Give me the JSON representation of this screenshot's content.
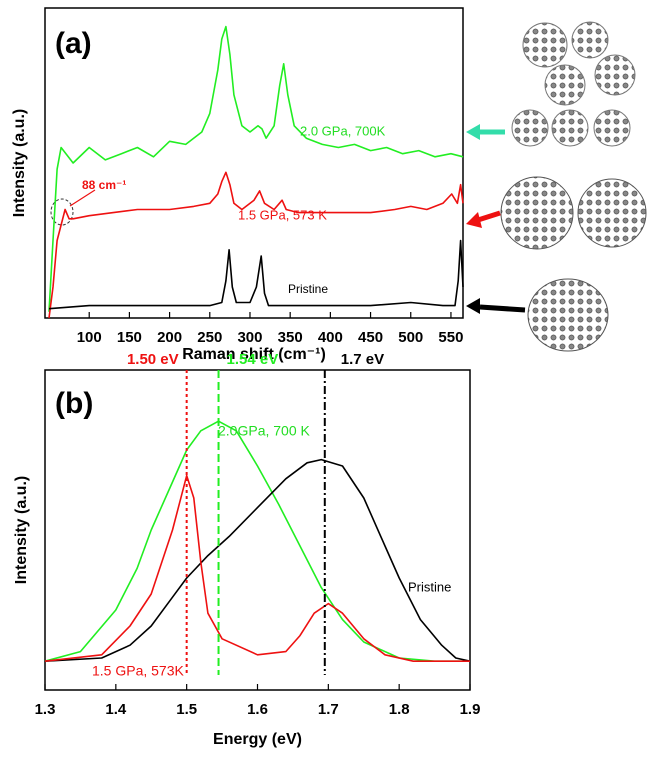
{
  "chart_data": [
    {
      "type": "line",
      "xlabel": "Raman shift (cm⁻¹)",
      "ylabel": "Intensity (a.u.)",
      "xlim": [
        45,
        565
      ],
      "ylim": [
        0,
        100
      ],
      "xticks": [
        100,
        150,
        200,
        250,
        300,
        350,
        400,
        450,
        500,
        550
      ],
      "series": [
        {
          "color": "#22ee22",
          "x": [
            50,
            55,
            60,
            65,
            80,
            100,
            120,
            140,
            160,
            180,
            200,
            220,
            240,
            250,
            260,
            265,
            270,
            275,
            280,
            290,
            300,
            310,
            315,
            320,
            330,
            337,
            342,
            347,
            355,
            370,
            390,
            410,
            430,
            450,
            470,
            490,
            510,
            530,
            550,
            565
          ],
          "values": [
            2,
            25,
            48,
            55,
            50,
            55,
            51,
            53,
            55,
            52,
            57,
            56,
            60,
            66,
            80,
            90,
            94,
            85,
            72,
            62,
            60,
            62,
            61,
            58,
            62,
            75,
            82,
            72,
            62,
            58,
            56,
            55,
            56,
            54,
            55,
            53,
            54,
            52,
            53,
            52
          ]
        },
        {
          "color": "#ee1111",
          "x": [
            50,
            55,
            60,
            65,
            70,
            75,
            80,
            100,
            130,
            160,
            200,
            230,
            250,
            260,
            265,
            270,
            275,
            280,
            290,
            305,
            312,
            318,
            330,
            340,
            345,
            360,
            400,
            450,
            480,
            500,
            520,
            540,
            551,
            558,
            562,
            565
          ],
          "values": [
            0,
            10,
            25,
            30,
            35,
            32,
            32,
            33,
            34,
            35,
            35,
            36,
            37,
            40,
            44,
            47,
            43,
            37,
            35,
            38,
            41,
            37,
            35,
            38,
            35,
            34,
            34,
            34,
            35,
            36,
            35,
            37,
            40,
            37,
            43,
            37
          ]
        },
        {
          "color": "#000000",
          "x": [
            50,
            100,
            150,
            200,
            250,
            265,
            270,
            274,
            278,
            283,
            300,
            308,
            314,
            318,
            323,
            350,
            400,
            450,
            500,
            540,
            555,
            559,
            562,
            565
          ],
          "values": [
            3,
            4,
            4,
            4,
            4,
            5,
            12,
            22,
            10,
            5,
            5,
            10,
            20,
            8,
            4,
            4,
            4,
            4,
            5,
            4,
            4,
            12,
            25,
            10
          ]
        }
      ],
      "annotations": [
        {
          "text": "(a)",
          "color": "#000000"
        },
        {
          "text": "2.0 GPa, 700K",
          "color": "#22dd22"
        },
        {
          "text": "88 cm⁻¹",
          "color": "#ee1111"
        },
        {
          "text": "1.5 GPa, 573 K",
          "color": "#ee1111"
        },
        {
          "text": "Pristine",
          "color": "#000000"
        }
      ]
    },
    {
      "type": "line",
      "xlabel": "Energy (eV)",
      "ylabel": "Intensity (a.u.)",
      "xlim": [
        1.3,
        1.9
      ],
      "ylim": [
        0,
        100
      ],
      "xticks": [
        1.3,
        1.4,
        1.5,
        1.6,
        1.7,
        1.8,
        1.9
      ],
      "series": [
        {
          "color": "#22ee22",
          "x": [
            1.3,
            1.35,
            1.4,
            1.43,
            1.45,
            1.48,
            1.5,
            1.52,
            1.545,
            1.57,
            1.6,
            1.63,
            1.66,
            1.69,
            1.72,
            1.75,
            1.8,
            1.85,
            1.9
          ],
          "values": [
            9,
            12,
            25,
            38,
            50,
            65,
            75,
            81,
            84,
            81,
            70,
            58,
            45,
            32,
            22,
            15,
            10,
            9,
            9
          ]
        },
        {
          "color": "#000000",
          "x": [
            1.3,
            1.38,
            1.42,
            1.45,
            1.48,
            1.5,
            1.53,
            1.56,
            1.6,
            1.64,
            1.67,
            1.69,
            1.72,
            1.75,
            1.78,
            1.8,
            1.83,
            1.86,
            1.88,
            1.9
          ],
          "values": [
            9,
            10,
            14,
            20,
            29,
            35,
            42,
            48,
            57,
            66,
            71,
            72,
            70,
            60,
            45,
            35,
            22,
            14,
            10,
            9
          ]
        },
        {
          "color": "#ee1111",
          "x": [
            1.3,
            1.38,
            1.42,
            1.45,
            1.48,
            1.5,
            1.51,
            1.52,
            1.53,
            1.55,
            1.6,
            1.64,
            1.66,
            1.68,
            1.7,
            1.72,
            1.75,
            1.78,
            1.82,
            1.9
          ],
          "values": [
            9,
            11,
            20,
            30,
            50,
            67,
            60,
            40,
            24,
            16,
            11,
            12,
            17,
            24,
            27,
            24,
            16,
            11,
            9,
            9
          ]
        }
      ],
      "vlines": [
        {
          "x": 1.5,
          "label": "1.50 eV",
          "color": "#ee1111",
          "style": "dotted"
        },
        {
          "x": 1.545,
          "label": "1.54 eV",
          "color": "#22ee22",
          "style": "dashed"
        },
        {
          "x": 1.695,
          "label": "1.7 eV",
          "color": "#000000",
          "style": "dashdot"
        }
      ],
      "annotations": [
        {
          "text": "(b)",
          "color": "#000000"
        },
        {
          "text": "2.0GPa, 700 K",
          "color": "#22dd22"
        },
        {
          "text": "Pristine",
          "color": "#000000"
        },
        {
          "text": "1.5 GPa, 573K",
          "color": "#ee1111"
        }
      ]
    }
  ]
}
